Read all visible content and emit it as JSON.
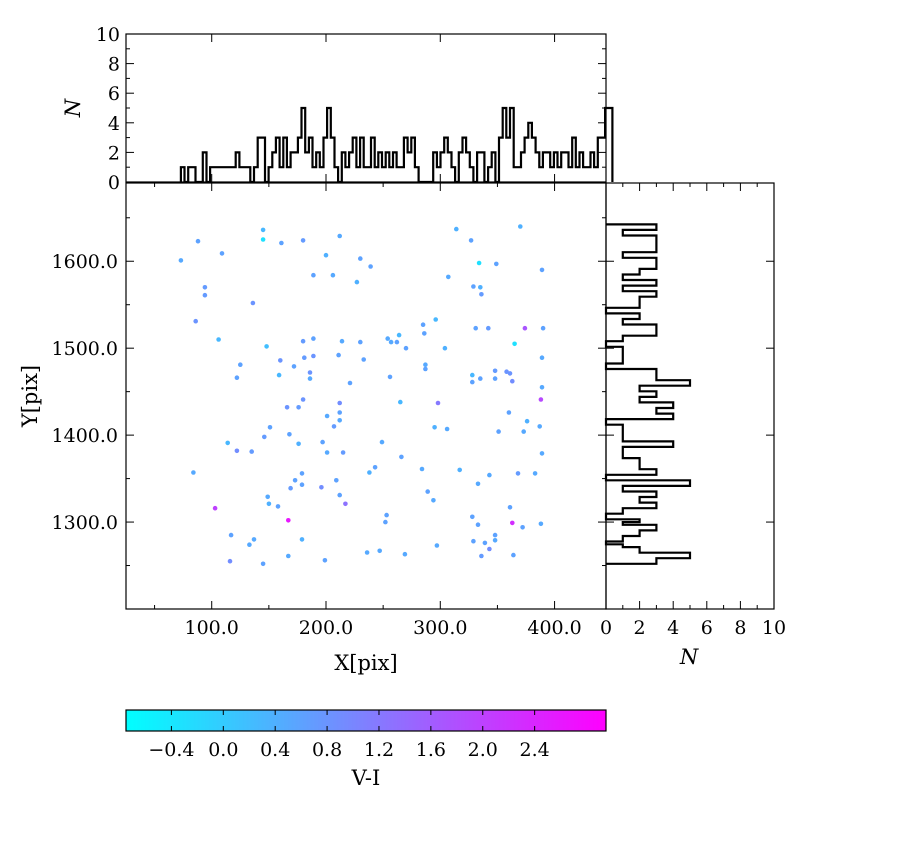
{
  "chart_data": [
    {
      "type": "scatter",
      "xlabel": "X[pix]",
      "ylabel": "Y[pix]",
      "xlim": [
        25,
        445
      ],
      "ylim": [
        1200,
        1690
      ],
      "xticks": [
        "100.0",
        "200.0",
        "300.0",
        "400.0"
      ],
      "yticks": [
        "1300.0",
        "1400.0",
        "1500.0",
        "1600.0"
      ],
      "color_by": "V-I",
      "points": [
        [
          73,
          1601,
          0.5
        ],
        [
          88,
          1623,
          0.6
        ],
        [
          94,
          1570,
          0.7
        ],
        [
          94,
          1561,
          0.7
        ],
        [
          109,
          1609,
          0.6
        ],
        [
          86,
          1531,
          0.8
        ],
        [
          136,
          1552,
          0.8
        ],
        [
          145,
          1636,
          0.3
        ],
        [
          145,
          1625,
          -0.3
        ],
        [
          161,
          1621,
          0.6
        ],
        [
          180,
          1624,
          0.7
        ],
        [
          200,
          1607,
          0.4
        ],
        [
          212,
          1629,
          0.5
        ],
        [
          206,
          1584,
          0.5
        ],
        [
          189,
          1584,
          0.6
        ],
        [
          230,
          1603,
          0.6
        ],
        [
          239,
          1594,
          0.6
        ],
        [
          227,
          1576,
          0.4
        ],
        [
          106,
          1510,
          0.3
        ],
        [
          148,
          1502,
          0.2
        ],
        [
          122,
          1466,
          0.6
        ],
        [
          125,
          1481,
          0.6
        ],
        [
          160,
          1486,
          0.8
        ],
        [
          159,
          1469,
          0.3
        ],
        [
          172,
          1479,
          0.6
        ],
        [
          181,
          1489,
          0.7
        ],
        [
          189,
          1491,
          0.8
        ],
        [
          189,
          1511,
          0.6
        ],
        [
          180,
          1508,
          0.7
        ],
        [
          186,
          1472,
          0.8
        ],
        [
          186,
          1465,
          0.5
        ],
        [
          166,
          1432,
          0.8
        ],
        [
          176,
          1432,
          0.7
        ],
        [
          180,
          1441,
          0.8
        ],
        [
          168,
          1401,
          0.6
        ],
        [
          176,
          1390,
          0.4
        ],
        [
          197,
          1392,
          0.6
        ],
        [
          201,
          1380,
          0.5
        ],
        [
          215,
          1380,
          0.7
        ],
        [
          201,
          1422,
          0.5
        ],
        [
          212,
          1426,
          0.6
        ],
        [
          212,
          1437,
          0.9
        ],
        [
          212,
          1417,
          0.5
        ],
        [
          207,
          1410,
          0.7
        ],
        [
          211,
          1492,
          0.6
        ],
        [
          221,
          1460,
          0.6
        ],
        [
          214,
          1508,
          0.5
        ],
        [
          230,
          1507,
          0.6
        ],
        [
          233,
          1487,
          0.6
        ],
        [
          114,
          1391,
          0.3
        ],
        [
          122,
          1382,
          0.9
        ],
        [
          135,
          1381,
          0.7
        ],
        [
          146,
          1398,
          0.7
        ],
        [
          151,
          1409,
          0.6
        ],
        [
          84,
          1357,
          0.5
        ],
        [
          103,
          1316,
          2.0
        ],
        [
          117,
          1285,
          0.6
        ],
        [
          133,
          1274,
          0.5
        ],
        [
          137,
          1280,
          0.5
        ],
        [
          116,
          1255,
          0.9
        ],
        [
          145,
          1252,
          0.6
        ],
        [
          149,
          1329,
          0.5
        ],
        [
          150,
          1321,
          0.4
        ],
        [
          158,
          1318,
          0.6
        ],
        [
          167,
          1302,
          2.6
        ],
        [
          169,
          1339,
          0.7
        ],
        [
          173,
          1348,
          0.6
        ],
        [
          179,
          1356,
          0.6
        ],
        [
          179,
          1343,
          0.6
        ],
        [
          179,
          1280,
          0.4
        ],
        [
          167,
          1261,
          0.5
        ],
        [
          199,
          1256,
          0.6
        ],
        [
          196,
          1340,
          0.9
        ],
        [
          209,
          1348,
          0.6
        ],
        [
          212,
          1331,
          0.6
        ],
        [
          217,
          1321,
          1.3
        ],
        [
          238,
          1357,
          0.4
        ],
        [
          243,
          1363,
          0.6
        ],
        [
          236,
          1265,
          0.5
        ],
        [
          247,
          1267,
          0.5
        ],
        [
          252,
          1300,
          0.6
        ],
        [
          253,
          1308,
          0.6
        ],
        [
          249,
          1392,
          0.5
        ],
        [
          266,
          1375,
          0.6
        ],
        [
          269,
          1263,
          0.5
        ],
        [
          254,
          1511,
          0.5
        ],
        [
          257,
          1507,
          0.5
        ],
        [
          262,
          1507,
          0.6
        ],
        [
          264,
          1515,
          0.3
        ],
        [
          270,
          1500,
          0.6
        ],
        [
          256,
          1467,
          0.6
        ],
        [
          265,
          1438,
          0.3
        ],
        [
          285,
          1527,
          0.6
        ],
        [
          286,
          1517,
          0.6
        ],
        [
          296,
          1533,
          0.3
        ],
        [
          287,
          1481,
          0.5
        ],
        [
          287,
          1476,
          0.6
        ],
        [
          298,
          1437,
          1.2
        ],
        [
          295,
          1409,
          0.4
        ],
        [
          306,
          1407,
          0.5
        ],
        [
          304,
          1500,
          0.4
        ],
        [
          284,
          1361,
          0.5
        ],
        [
          289,
          1335,
          0.6
        ],
        [
          294,
          1325,
          0.5
        ],
        [
          297,
          1273,
          0.5
        ],
        [
          307,
          1582,
          0.5
        ],
        [
          314,
          1637,
          0.4
        ],
        [
          331,
          1523,
          0.6
        ],
        [
          342,
          1523,
          0.7
        ],
        [
          328,
          1469,
          0.3
        ],
        [
          328,
          1461,
          0.6
        ],
        [
          335,
          1465,
          0.6
        ],
        [
          349,
          1597,
          0.6
        ],
        [
          334,
          1598,
          -0.3
        ],
        [
          335,
          1570,
          0.4
        ],
        [
          336,
          1562,
          0.7
        ],
        [
          329,
          1571,
          0.6
        ],
        [
          327,
          1624,
          0.6
        ],
        [
          370,
          1640,
          0.4
        ],
        [
          374,
          1523,
          1.7
        ],
        [
          365,
          1505,
          -0.3
        ],
        [
          348,
          1465,
          0.6
        ],
        [
          348,
          1474,
          0.7
        ],
        [
          358,
          1473,
          0.8
        ],
        [
          361,
          1471,
          0.8
        ],
        [
          363,
          1462,
          0.9
        ],
        [
          360,
          1426,
          0.6
        ],
        [
          351,
          1404,
          0.6
        ],
        [
          373,
          1404,
          0.5
        ],
        [
          376,
          1416,
          0.4
        ],
        [
          387,
          1410,
          0.5
        ],
        [
          388,
          1441,
          1.9
        ],
        [
          389,
          1455,
          0.5
        ],
        [
          389,
          1489,
          0.5
        ],
        [
          390,
          1523,
          0.6
        ],
        [
          389,
          1590,
          0.6
        ],
        [
          317,
          1360,
          0.4
        ],
        [
          333,
          1344,
          0.5
        ],
        [
          343,
          1354,
          0.5
        ],
        [
          361,
          1317,
          0.6
        ],
        [
          368,
          1356,
          0.7
        ],
        [
          383,
          1356,
          0.5
        ],
        [
          389,
          1379,
          0.5
        ],
        [
          328,
          1306,
          0.6
        ],
        [
          333,
          1297,
          0.6
        ],
        [
          329,
          1278,
          0.6
        ],
        [
          339,
          1276,
          0.6
        ],
        [
          343,
          1269,
          0.9
        ],
        [
          348,
          1285,
          0.6
        ],
        [
          363,
          1299,
          2.3
        ],
        [
          372,
          1294,
          0.6
        ],
        [
          336,
          1261,
          0.7
        ],
        [
          348,
          1279,
          0.5
        ],
        [
          364,
          1262,
          0.6
        ],
        [
          388,
          1298,
          0.5
        ]
      ]
    },
    {
      "type": "bar",
      "ylabel": "N",
      "ylim": [
        0,
        10
      ],
      "yticks": [
        "0",
        "2",
        "4",
        "6",
        "8",
        "10"
      ],
      "binning": "X[pix], 3.2 px bins from 73.0",
      "values": [
        1,
        0,
        1,
        1,
        0,
        0,
        2,
        0,
        1,
        1,
        1,
        1,
        1,
        1,
        1,
        2,
        1,
        1,
        1,
        0,
        1,
        3,
        3,
        0,
        1,
        2,
        3,
        1,
        3,
        1,
        2,
        2,
        3,
        5,
        2,
        3,
        1,
        2,
        1,
        3,
        5,
        3,
        1,
        0,
        2,
        1,
        2,
        3,
        1,
        3,
        1,
        1,
        3,
        1,
        2,
        1,
        2,
        1,
        2,
        1,
        1,
        3,
        2,
        3,
        1,
        0,
        0,
        0,
        0,
        2,
        1,
        2,
        3,
        2,
        1,
        0,
        2,
        3,
        2,
        1,
        0,
        2,
        2,
        0,
        1,
        2,
        0,
        3,
        5,
        3,
        5,
        1,
        1,
        2,
        3,
        4,
        3,
        2,
        1,
        2,
        2,
        1,
        2,
        1,
        2,
        2,
        1,
        3,
        1,
        2,
        1,
        1,
        2,
        1,
        3,
        3,
        5,
        5
      ]
    },
    {
      "type": "bar",
      "orientation": "horizontal",
      "xlabel": "N",
      "xlim": [
        0,
        10
      ],
      "xticks": [
        "0",
        "2",
        "4",
        "6",
        "8",
        "10"
      ],
      "binning": "Y[pix], 3.2 px bins from 1252.0",
      "values": [
        3,
        3,
        5,
        5,
        2,
        2,
        1,
        0,
        1,
        1,
        2,
        2,
        3,
        3,
        1,
        2,
        0,
        0,
        1,
        1,
        3,
        3,
        2,
        2,
        3,
        3,
        1,
        1,
        5,
        5,
        0,
        0,
        3,
        3,
        2,
        2,
        2,
        2,
        1,
        1,
        1,
        1,
        4,
        4,
        1,
        1,
        1,
        1,
        1,
        1,
        0,
        0,
        4,
        4,
        3,
        3,
        4,
        4,
        2,
        2,
        3,
        3,
        2,
        2,
        5,
        5,
        3,
        3,
        3,
        3,
        0,
        0,
        1,
        1,
        1,
        1,
        1,
        1,
        0,
        0,
        1,
        1,
        3,
        3,
        3,
        3,
        1,
        1,
        2,
        2,
        0,
        0,
        2,
        2,
        2,
        2,
        3,
        3,
        1,
        1,
        3,
        3,
        1,
        1,
        2,
        2,
        3,
        3,
        3,
        3,
        1,
        1,
        3,
        3,
        3,
        3,
        3,
        3,
        1,
        1,
        3,
        3
      ]
    },
    {
      "type": "colorbar",
      "label": "V-I",
      "range": [
        -0.75,
        2.95
      ],
      "colors": [
        "#00ffff",
        "#ff00ff"
      ],
      "ticks": [
        "−0.4",
        "0.0",
        "0.4",
        "0.8",
        "1.2",
        "1.6",
        "2.0",
        "2.4"
      ]
    }
  ]
}
